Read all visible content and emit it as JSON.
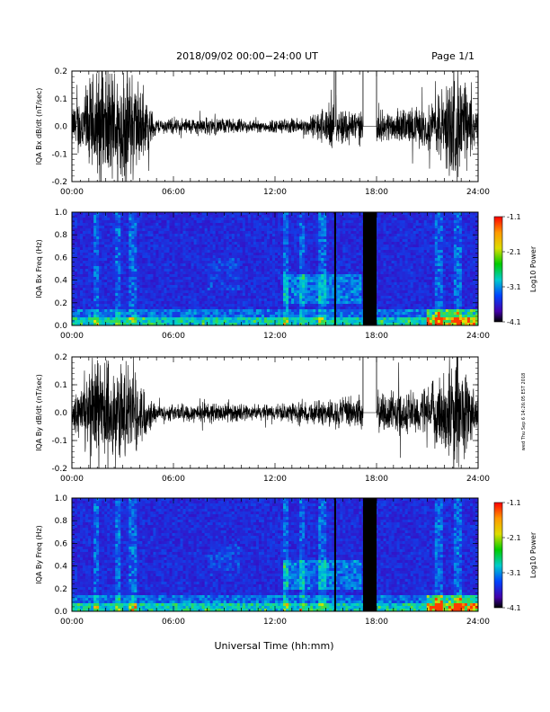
{
  "header": {
    "date_range": "2018/09/02  00:00−24:00 UT",
    "page": "Page 1/1"
  },
  "side_stamp": "wed Thu Sep 6 14:26:05 EST 2018",
  "time_ticks": [
    "00:00",
    "06:00",
    "12:00",
    "18:00",
    "24:00"
  ],
  "xlabel": "Universal Time (hh:mm)",
  "colorbar": {
    "label": "Log10 Power",
    "ticks": [
      "-1.1",
      "-2.1",
      "-3.1",
      "-4.1"
    ]
  },
  "chart_data": [
    {
      "type": "line",
      "ylabel": "IQA Bx dB/dt (nT/sec)",
      "xlim": [
        0,
        24
      ],
      "ylim": [
        -0.2,
        0.2
      ],
      "yticks": [
        "0.2",
        "0.1",
        "0.0",
        "-0.1",
        "-0.2"
      ],
      "gaps": [
        [
          15.5,
          15.6
        ],
        [
          17.2,
          18.0
        ]
      ],
      "activity": [
        {
          "x": 0.0,
          "amp": 0.06
        },
        {
          "x": 1.5,
          "amp": 0.2
        },
        {
          "x": 3.5,
          "amp": 0.2
        },
        {
          "x": 5.0,
          "amp": 0.025
        },
        {
          "x": 8.0,
          "amp": 0.03
        },
        {
          "x": 11.0,
          "amp": 0.02
        },
        {
          "x": 14.0,
          "amp": 0.03
        },
        {
          "x": 15.0,
          "amp": 0.07
        },
        {
          "x": 18.5,
          "amp": 0.05
        },
        {
          "x": 21.0,
          "amp": 0.07
        },
        {
          "x": 22.8,
          "amp": 0.2
        },
        {
          "x": 24.0,
          "amp": 0.06
        }
      ]
    },
    {
      "type": "heatmap",
      "ylabel": "IQA Bx Freq (Hz)",
      "xlim": [
        0,
        24
      ],
      "ylim": [
        0,
        1.0
      ],
      "yticks": [
        "1.0",
        "0.8",
        "0.6",
        "0.4",
        "0.2",
        "0.0"
      ],
      "zlim": [
        -4.1,
        -1.1
      ],
      "gaps": [
        [
          15.5,
          15.6
        ],
        [
          17.2,
          18.0
        ]
      ]
    },
    {
      "type": "line",
      "ylabel": "IQA By dB/dt (nT/sec)",
      "xlim": [
        0,
        24
      ],
      "ylim": [
        -0.2,
        0.2
      ],
      "yticks": [
        "0.2",
        "0.1",
        "0.0",
        "-0.1",
        "-0.2"
      ],
      "gaps": [
        [
          17.2,
          18.0
        ]
      ],
      "activity": [
        {
          "x": 0.0,
          "amp": 0.05
        },
        {
          "x": 1.5,
          "amp": 0.2
        },
        {
          "x": 3.5,
          "amp": 0.15
        },
        {
          "x": 5.0,
          "amp": 0.025
        },
        {
          "x": 8.0,
          "amp": 0.035
        },
        {
          "x": 11.0,
          "amp": 0.025
        },
        {
          "x": 14.0,
          "amp": 0.035
        },
        {
          "x": 15.5,
          "amp": 0.05
        },
        {
          "x": 18.5,
          "amp": 0.07
        },
        {
          "x": 21.0,
          "amp": 0.08
        },
        {
          "x": 22.8,
          "amp": 0.2
        },
        {
          "x": 24.0,
          "amp": 0.06
        }
      ]
    },
    {
      "type": "heatmap",
      "ylabel": "IQA By Freq (Hz)",
      "xlim": [
        0,
        24
      ],
      "ylim": [
        0,
        1.0
      ],
      "yticks": [
        "1.0",
        "0.8",
        "0.6",
        "0.4",
        "0.2",
        "0.0"
      ],
      "zlim": [
        -4.1,
        -1.1
      ],
      "gaps": [
        [
          15.5,
          15.6
        ],
        [
          17.2,
          18.0
        ]
      ]
    }
  ]
}
